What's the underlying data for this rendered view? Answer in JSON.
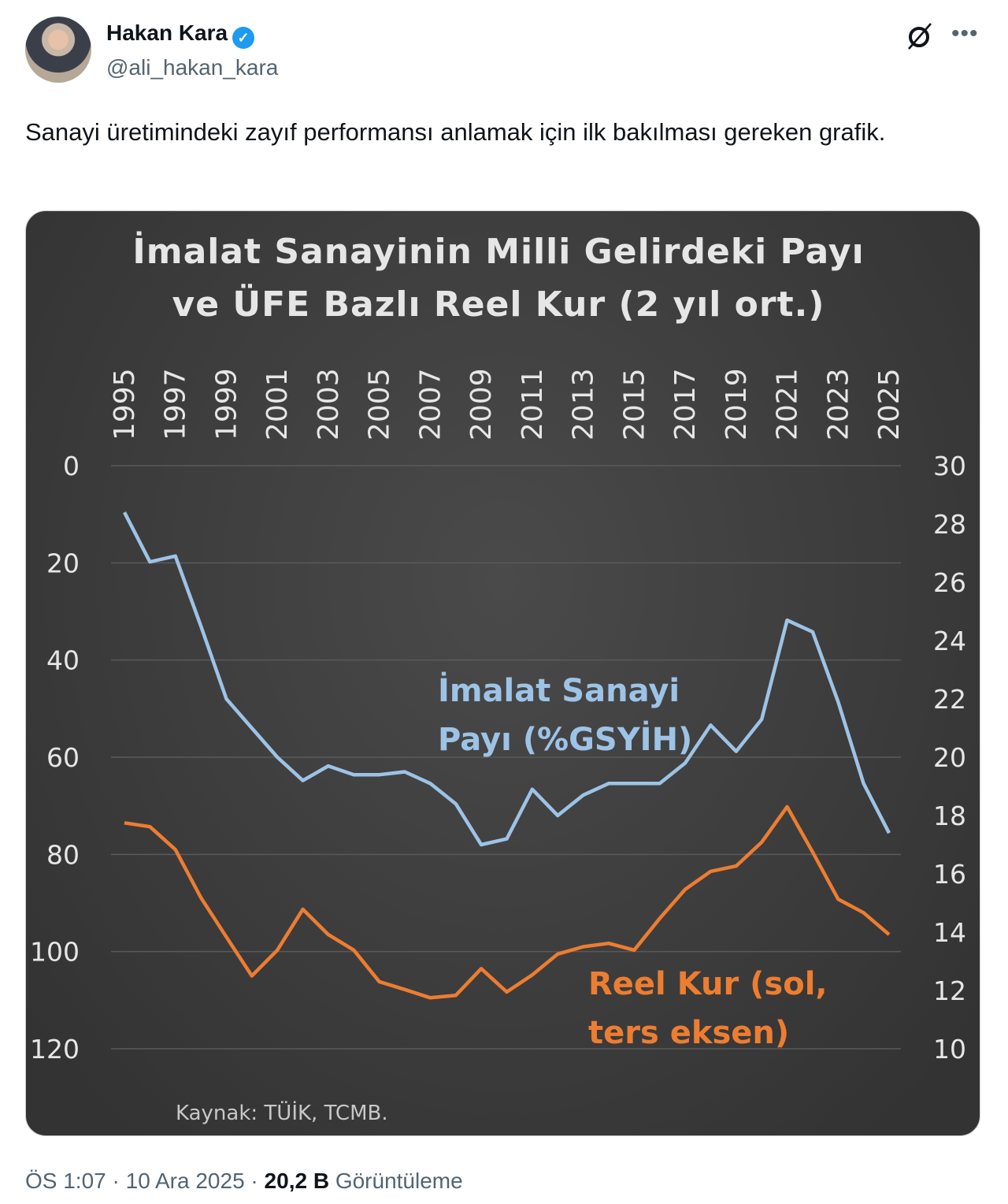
{
  "author": {
    "name": "Hakan Kara",
    "handle": "@ali_hakan_kara",
    "verified": true
  },
  "icons": [
    "grok-icon",
    "more-icon"
  ],
  "tweet_text": "Sanayi üretimindeki zayıf performansı anlamak için ilk bakılması gereken grafik.",
  "meta": {
    "time": "ÖS 1:07",
    "date": "10 Ara 2025",
    "views": "20,2 B",
    "views_label": "Görüntüleme"
  },
  "chart_data": {
    "type": "line",
    "title_lines": [
      "İmalat Sanayinin Milli Gelirdeki Payı",
      "ve ÜFE Bazlı Reel Kur (2 yıl ort.)"
    ],
    "x": [
      1995,
      1996,
      1997,
      1998,
      1999,
      2000,
      2001,
      2002,
      2003,
      2004,
      2005,
      2006,
      2007,
      2008,
      2009,
      2010,
      2011,
      2012,
      2013,
      2014,
      2015,
      2016,
      2017,
      2018,
      2019,
      2020,
      2021,
      2022,
      2023,
      2024,
      2025
    ],
    "x_tick_labels": [
      "1995",
      "1997",
      "1999",
      "2001",
      "2003",
      "2005",
      "2007",
      "2009",
      "2011",
      "2013",
      "2015",
      "2017",
      "2019",
      "2021",
      "2023",
      "2025"
    ],
    "left_axis": {
      "range": [
        0,
        120
      ],
      "inverted": true,
      "ticks": [
        "0",
        "20",
        "40",
        "60",
        "80",
        "100",
        "120"
      ]
    },
    "right_axis": {
      "range": [
        10,
        30
      ],
      "ticks": [
        "30",
        "28",
        "26",
        "24",
        "22",
        "20",
        "18",
        "16",
        "14",
        "12",
        "10"
      ]
    },
    "series": [
      {
        "name": "İmalat Sanayi Payı (%GSYİH)",
        "label_lines": [
          "İmalat Sanayi",
          "Payı (%GSYİH)"
        ],
        "axis": "right",
        "color": "#9dc3e6",
        "values": [
          28.4,
          26.7,
          26.9,
          24.5,
          22.0,
          21.0,
          20.0,
          19.2,
          19.7,
          19.4,
          19.4,
          19.5,
          19.1,
          18.4,
          17.0,
          17.2,
          18.9,
          18.0,
          18.7,
          19.1,
          19.1,
          19.1,
          19.8,
          21.1,
          20.2,
          21.3,
          24.7,
          24.3,
          21.9,
          19.1,
          17.4
        ]
      },
      {
        "name": "Reel Kur (sol, ters eksen)",
        "label_lines": [
          "Reel Kur (sol,",
          "ters eksen)"
        ],
        "axis": "left",
        "color": "#ed7d31",
        "values": [
          73.5,
          74.3,
          79,
          88.9,
          97,
          105,
          99.7,
          91.3,
          96.5,
          99.7,
          106.2,
          107.8,
          109.5,
          109,
          103.5,
          108.3,
          104.8,
          100.5,
          99,
          98.3,
          99.7,
          93.2,
          87.2,
          83.5,
          82.4,
          77.5,
          70.2,
          79.5,
          89.2,
          92,
          96.5
        ]
      }
    ],
    "source": "Kaynak: TÜİK, TCMB.",
    "grid": true
  }
}
